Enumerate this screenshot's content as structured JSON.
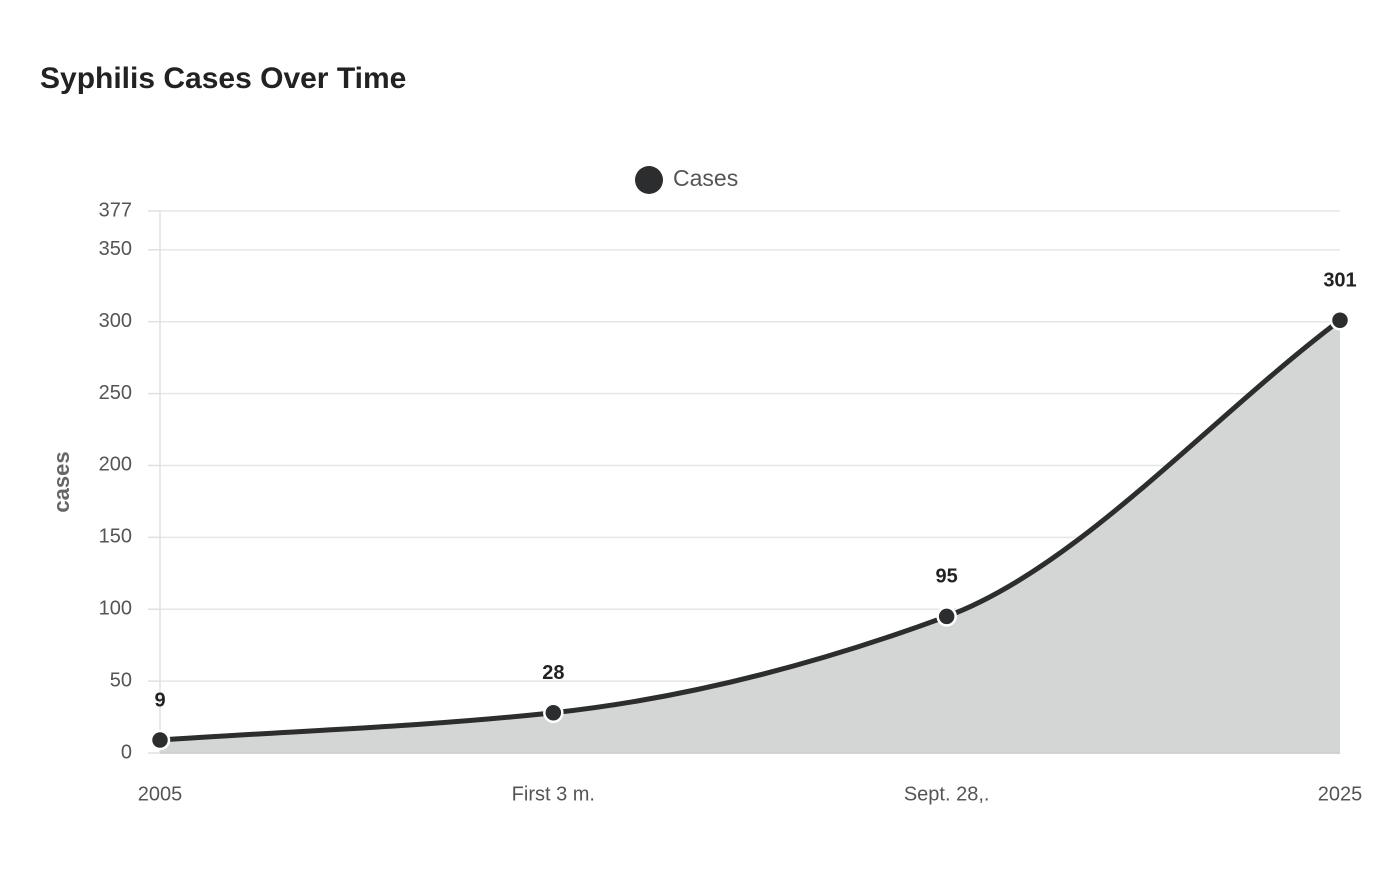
{
  "chart_data": {
    "type": "area",
    "title": "Syphilis Cases Over Time",
    "categories": [
      "2005",
      "First 3 m.",
      "Sept. 28,.",
      "2025"
    ],
    "series": [
      {
        "name": "Cases",
        "color": "#2b2d2f",
        "fill_color": "#d4d5d5",
        "values": [
          9,
          28,
          95,
          301
        ]
      }
    ],
    "y_label": "cases",
    "ylim": [
      0,
      377
    ],
    "yticks": [
      0,
      50,
      100,
      150,
      200,
      250,
      300,
      350,
      377
    ],
    "grid": true,
    "legend": "top"
  }
}
